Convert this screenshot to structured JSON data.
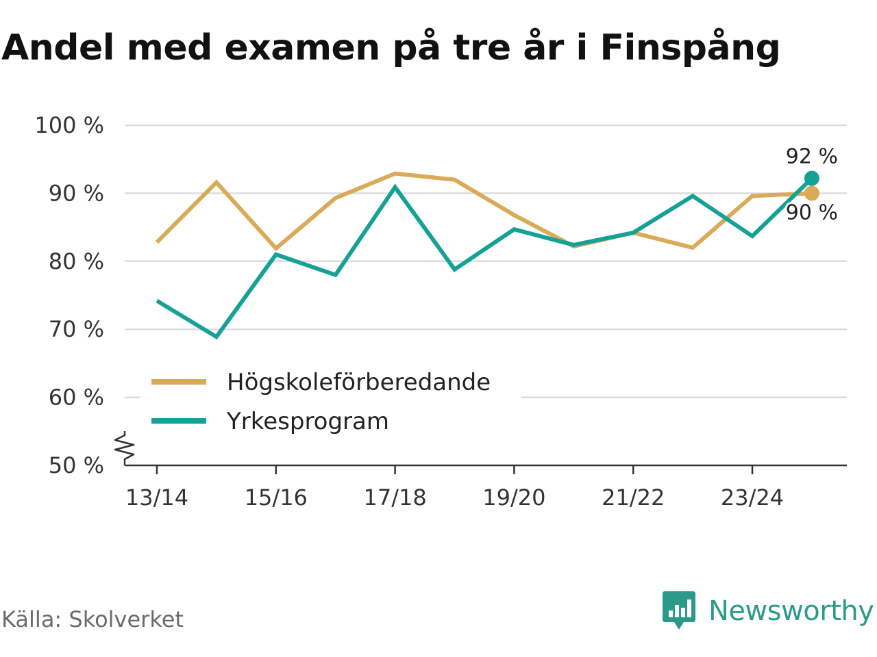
{
  "chart_data": {
    "type": "line",
    "title": "Andel med examen på tre år i Finspång",
    "xlabel": "",
    "ylabel": "",
    "x": [
      "13/14",
      "14/15",
      "15/16",
      "16/17",
      "17/18",
      "18/19",
      "19/20",
      "20/21",
      "21/22",
      "22/23",
      "23/24",
      "24/25"
    ],
    "x_tick_labels": [
      "13/14",
      "15/16",
      "17/18",
      "19/20",
      "21/22",
      "23/24"
    ],
    "y_tick_labels": [
      "100 %",
      "90 %",
      "80 %",
      "70 %",
      "60 %",
      "50 %"
    ],
    "y_ticks": [
      100,
      90,
      80,
      70,
      60,
      50
    ],
    "ylim": [
      50,
      100
    ],
    "axis_break": true,
    "grid": true,
    "legend_position": "lower-left",
    "series": [
      {
        "name": "Högskoleförberedande",
        "color": "#d9ab58",
        "values": [
          82.8,
          91.6,
          81.9,
          89.3,
          92.9,
          92.0,
          86.8,
          82.2,
          84.2,
          82.0,
          89.6,
          90.0
        ],
        "end_label": "90 %"
      },
      {
        "name": "Yrkesprogram",
        "color": "#15a196",
        "values": [
          74.2,
          68.9,
          81.0,
          78.0,
          90.9,
          78.8,
          84.7,
          82.4,
          84.2,
          89.6,
          83.7,
          92.2
        ],
        "end_label": "92 %"
      }
    ]
  },
  "footer": {
    "source": "Källa: Skolverket",
    "brand": "Newsworthy"
  },
  "colors": {
    "gridline": "#dcdcdc",
    "axis": "#333333",
    "brand": "#2b9a8b"
  },
  "icons": {
    "brand_logo": "newsworthy-bar-chart-icon"
  }
}
